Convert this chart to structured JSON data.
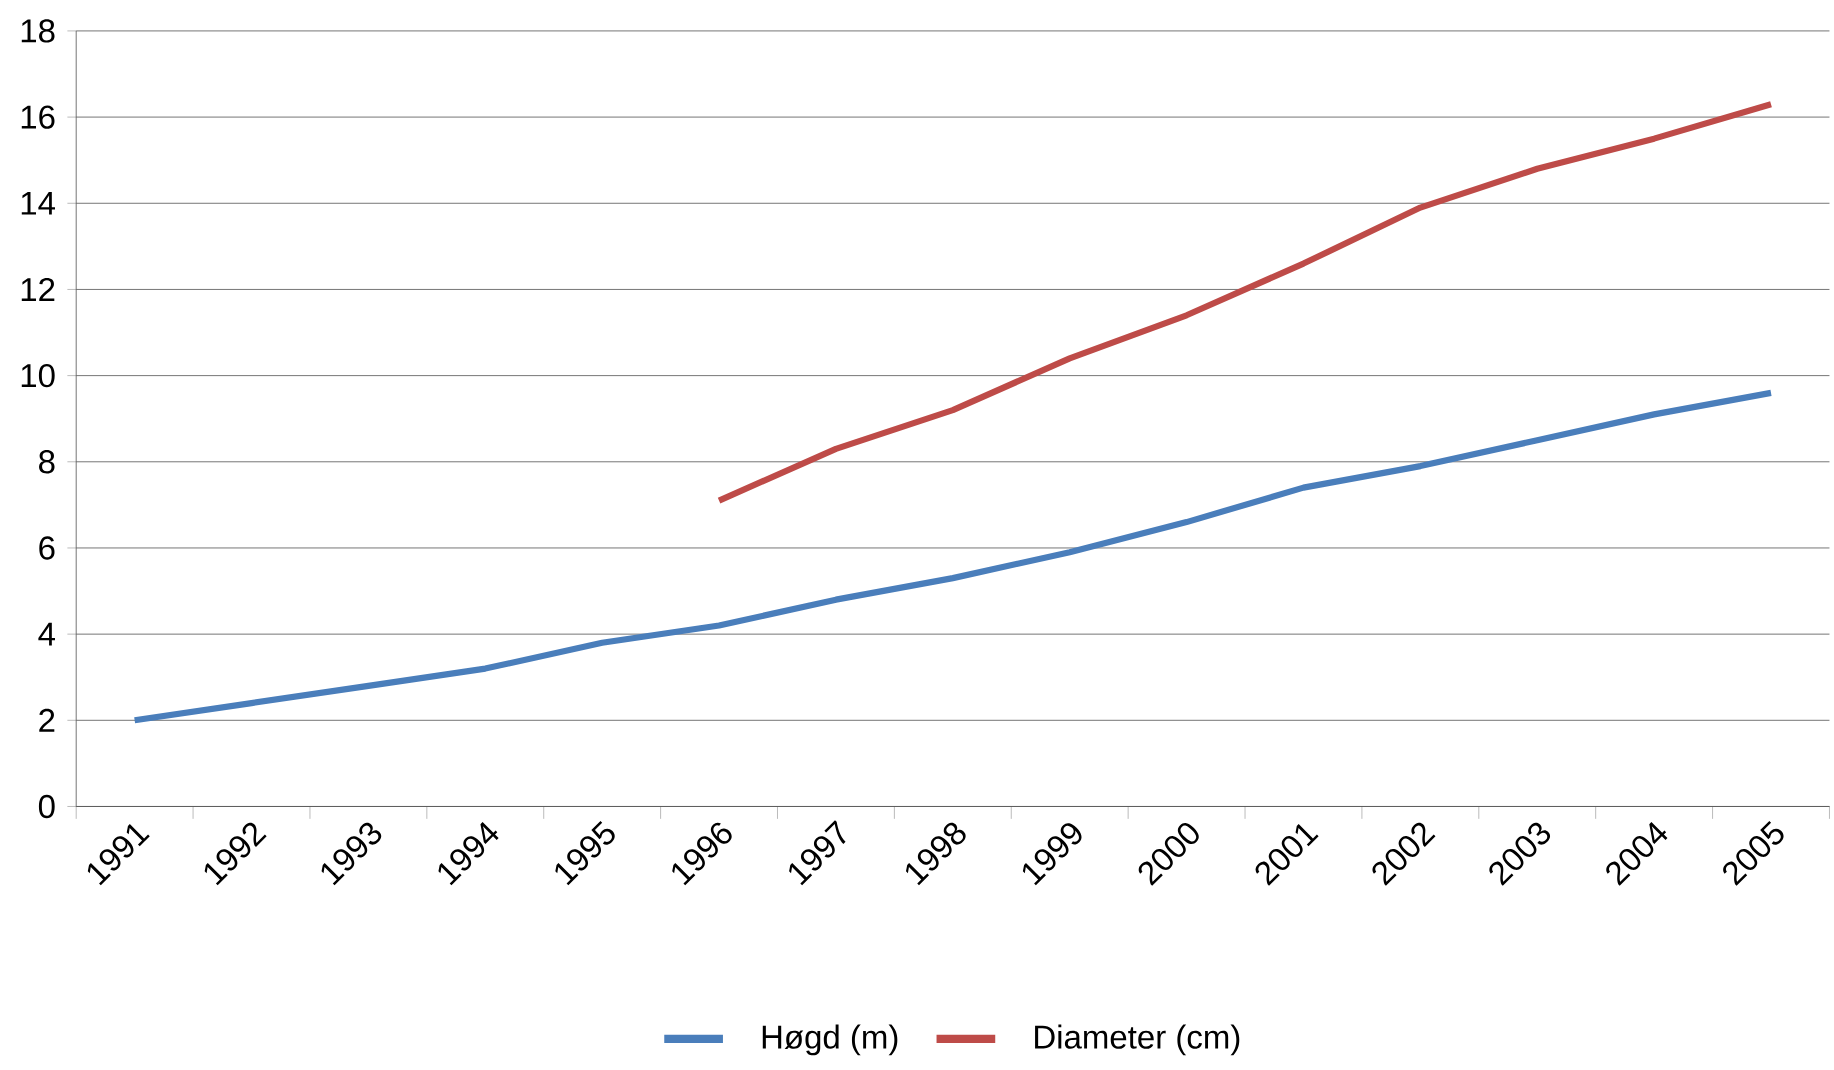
{
  "chart_data": {
    "type": "line",
    "categories": [
      "1991",
      "1992",
      "1993",
      "1994",
      "1995",
      "1996",
      "1997",
      "1998",
      "1999",
      "2000",
      "2001",
      "2002",
      "2003",
      "2004",
      "2005"
    ],
    "series": [
      {
        "name": "Høgd (m)",
        "color": "#4a7ebb",
        "values": [
          2.0,
          2.4,
          2.8,
          3.2,
          3.8,
          4.2,
          4.8,
          5.3,
          5.9,
          6.6,
          7.4,
          7.9,
          8.5,
          9.1,
          9.6
        ]
      },
      {
        "name": "Diameter (cm)",
        "color": "#be4b48",
        "values": [
          null,
          null,
          null,
          null,
          null,
          7.1,
          8.3,
          9.2,
          10.4,
          11.4,
          12.6,
          13.9,
          14.8,
          15.5,
          16.3
        ]
      }
    ],
    "ylim": [
      0,
      18
    ],
    "yticks": [
      0,
      2,
      4,
      6,
      8,
      10,
      12,
      14,
      16,
      18
    ],
    "grid": "y",
    "legend": "bottom",
    "marker": "none",
    "line_style": "solid"
  }
}
